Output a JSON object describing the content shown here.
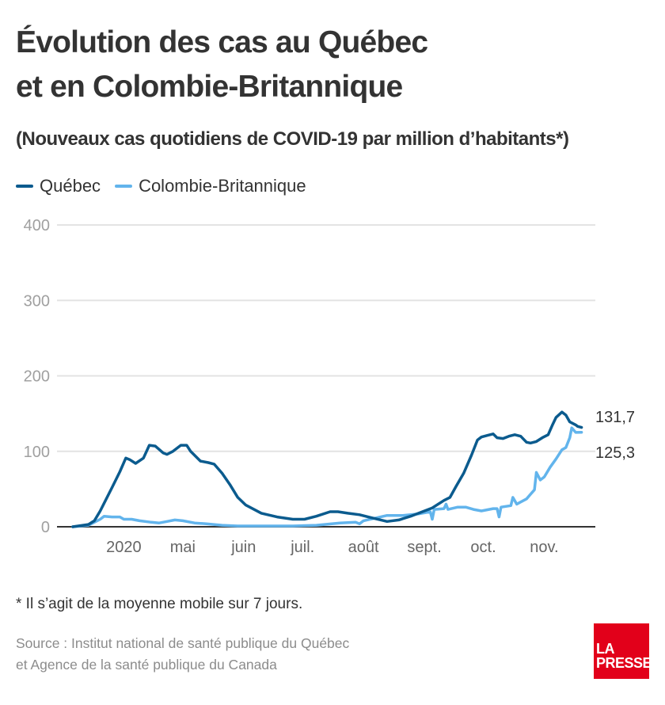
{
  "header": {
    "title_line1": "Évolution des cas au Québec",
    "title_line2": "et en Colombie-Britannique",
    "subtitle": "(Nouveaux cas quotidiens de COVID-19 par million d’habitants*)"
  },
  "footer": {
    "note": "* Il s’agit de la moyenne mobile sur 7 jours.",
    "source_line1": "Source : Institut national de santé publique du Québec",
    "source_line2": "et Agence de la santé publique du Canada",
    "logo_line1": "LA",
    "logo_line2": "PRESSE",
    "logo_color": "#e2001a"
  },
  "chart_data": {
    "type": "line",
    "title": "Évolution des cas au Québec et en Colombie-Britannique",
    "subtitle": "(Nouveaux cas quotidiens de COVID-19 par million d’habitants*)",
    "xlabel": "",
    "ylabel": "",
    "ylim": [
      0,
      400
    ],
    "yticks": [
      0,
      100,
      200,
      300,
      400
    ],
    "ytick_labels": [
      "0",
      "100",
      "200",
      "300",
      "400"
    ],
    "xlim": [
      "2020-02-27",
      "2020-11-27"
    ],
    "xticks": [
      "2020-04-01",
      "2020-05-01",
      "2020-06-01",
      "2020-07-01",
      "2020-08-01",
      "2020-09-01",
      "2020-10-01",
      "2020-11-01"
    ],
    "xtick_labels": [
      "2020",
      "mai",
      "juin",
      "juil.",
      "août",
      "sept.",
      "oct.",
      "nov."
    ],
    "grid": true,
    "legend_position": "top-left",
    "series": [
      {
        "name": "Québec",
        "color": "#0b5b8e",
        "end_label": "131,7",
        "points": [
          [
            "2020-03-06",
            0
          ],
          [
            "2020-03-14",
            3
          ],
          [
            "2020-03-17",
            8
          ],
          [
            "2020-03-20",
            21
          ],
          [
            "2020-03-26",
            52
          ],
          [
            "2020-03-30",
            73
          ],
          [
            "2020-04-02",
            91
          ],
          [
            "2020-04-04",
            89
          ],
          [
            "2020-04-07",
            84
          ],
          [
            "2020-04-11",
            91
          ],
          [
            "2020-04-14",
            108
          ],
          [
            "2020-04-17",
            107
          ],
          [
            "2020-04-21",
            98
          ],
          [
            "2020-04-23",
            96
          ],
          [
            "2020-04-26",
            100
          ],
          [
            "2020-04-30",
            108
          ],
          [
            "2020-05-03",
            108
          ],
          [
            "2020-05-05",
            100
          ],
          [
            "2020-05-10",
            87
          ],
          [
            "2020-05-14",
            85
          ],
          [
            "2020-05-17",
            83
          ],
          [
            "2020-05-21",
            71
          ],
          [
            "2020-05-25",
            56
          ],
          [
            "2020-05-29",
            39
          ],
          [
            "2020-06-02",
            29
          ],
          [
            "2020-06-10",
            18
          ],
          [
            "2020-06-18",
            13
          ],
          [
            "2020-06-26",
            10
          ],
          [
            "2020-07-02",
            10
          ],
          [
            "2020-07-08",
            14
          ],
          [
            "2020-07-15",
            20
          ],
          [
            "2020-07-19",
            20
          ],
          [
            "2020-07-24",
            18
          ],
          [
            "2020-07-30",
            16
          ],
          [
            "2020-08-05",
            12
          ],
          [
            "2020-08-13",
            7
          ],
          [
            "2020-08-19",
            9
          ],
          [
            "2020-08-25",
            14
          ],
          [
            "2020-08-31",
            20
          ],
          [
            "2020-09-05",
            25
          ],
          [
            "2020-09-11",
            35
          ],
          [
            "2020-09-14",
            39
          ],
          [
            "2020-09-17",
            53
          ],
          [
            "2020-09-21",
            71
          ],
          [
            "2020-09-25",
            95
          ],
          [
            "2020-09-28",
            115
          ],
          [
            "2020-09-30",
            119
          ],
          [
            "2020-10-03",
            121
          ],
          [
            "2020-10-06",
            123
          ],
          [
            "2020-10-08",
            118
          ],
          [
            "2020-10-11",
            117
          ],
          [
            "2020-10-14",
            120
          ],
          [
            "2020-10-17",
            122
          ],
          [
            "2020-10-20",
            120
          ],
          [
            "2020-10-23",
            112
          ],
          [
            "2020-10-25",
            111
          ],
          [
            "2020-10-28",
            113
          ],
          [
            "2020-10-31",
            118
          ],
          [
            "2020-11-03",
            122
          ],
          [
            "2020-11-05",
            134
          ],
          [
            "2020-11-07",
            145
          ],
          [
            "2020-11-10",
            152
          ],
          [
            "2020-11-12",
            148
          ],
          [
            "2020-11-14",
            139
          ],
          [
            "2020-11-17",
            135
          ],
          [
            "2020-11-18",
            133
          ],
          [
            "2020-11-20",
            131.7
          ]
        ]
      },
      {
        "name": "Colombie-Britannique",
        "color": "#62b4ec",
        "end_label": "125,3",
        "points": [
          [
            "2020-03-06",
            0
          ],
          [
            "2020-03-14",
            2
          ],
          [
            "2020-03-17",
            6
          ],
          [
            "2020-03-20",
            10
          ],
          [
            "2020-03-22",
            14
          ],
          [
            "2020-03-26",
            13
          ],
          [
            "2020-03-30",
            13
          ],
          [
            "2020-04-01",
            10
          ],
          [
            "2020-04-05",
            10
          ],
          [
            "2020-04-09",
            8
          ],
          [
            "2020-04-15",
            6
          ],
          [
            "2020-04-19",
            5
          ],
          [
            "2020-04-23",
            7
          ],
          [
            "2020-04-27",
            9
          ],
          [
            "2020-05-01",
            8
          ],
          [
            "2020-05-07",
            5
          ],
          [
            "2020-05-13",
            4
          ],
          [
            "2020-05-21",
            2
          ],
          [
            "2020-05-29",
            1
          ],
          [
            "2020-06-10",
            1
          ],
          [
            "2020-06-26",
            1
          ],
          [
            "2020-07-08",
            2
          ],
          [
            "2020-07-20",
            5
          ],
          [
            "2020-07-28",
            6
          ],
          [
            "2020-07-30",
            4
          ],
          [
            "2020-08-01",
            8
          ],
          [
            "2020-08-13",
            15
          ],
          [
            "2020-08-21",
            15
          ],
          [
            "2020-08-29",
            17
          ],
          [
            "2020-09-04",
            20
          ],
          [
            "2020-09-05",
            10
          ],
          [
            "2020-09-06",
            23
          ],
          [
            "2020-09-11",
            24
          ],
          [
            "2020-09-12",
            30
          ],
          [
            "2020-09-13",
            23
          ],
          [
            "2020-09-18",
            26
          ],
          [
            "2020-09-22",
            26
          ],
          [
            "2020-09-26",
            23
          ],
          [
            "2020-09-30",
            21
          ],
          [
            "2020-10-06",
            24
          ],
          [
            "2020-10-08",
            24
          ],
          [
            "2020-10-09",
            13
          ],
          [
            "2020-10-10",
            26
          ],
          [
            "2020-10-15",
            28
          ],
          [
            "2020-10-16",
            39
          ],
          [
            "2020-10-18",
            30
          ],
          [
            "2020-10-23",
            37
          ],
          [
            "2020-10-25",
            43
          ],
          [
            "2020-10-27",
            49
          ],
          [
            "2020-10-28",
            72
          ],
          [
            "2020-10-30",
            62
          ],
          [
            "2020-11-01",
            66
          ],
          [
            "2020-11-04",
            79
          ],
          [
            "2020-11-07",
            90
          ],
          [
            "2020-11-10",
            102
          ],
          [
            "2020-11-12",
            105
          ],
          [
            "2020-11-14",
            118
          ],
          [
            "2020-11-15",
            131
          ],
          [
            "2020-11-17",
            125
          ],
          [
            "2020-11-20",
            125.3
          ]
        ]
      }
    ]
  }
}
